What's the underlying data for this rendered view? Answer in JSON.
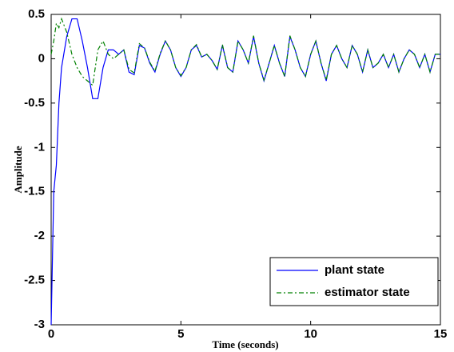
{
  "chart_data": {
    "type": "line",
    "xlabel": "Time (seconds)",
    "ylabel": "Amplitude",
    "x": [
      0,
      0.1,
      0.2,
      0.3,
      0.4,
      0.6,
      0.8,
      1.0,
      1.2,
      1.4,
      1.6,
      1.8,
      2.0,
      2.2,
      2.4,
      2.6,
      2.8,
      3.0,
      3.2,
      3.4,
      3.6,
      3.8,
      4.0,
      4.2,
      4.4,
      4.6,
      4.8,
      5.0,
      5.2,
      5.4,
      5.6,
      5.8,
      6.0,
      6.2,
      6.4,
      6.6,
      6.8,
      7.0,
      7.2,
      7.4,
      7.6,
      7.8,
      8.0,
      8.2,
      8.4,
      8.6,
      8.8,
      9.0,
      9.2,
      9.4,
      9.6,
      9.8,
      10.0,
      10.2,
      10.4,
      10.6,
      10.8,
      11.0,
      11.2,
      11.4,
      11.6,
      11.8,
      12.0,
      12.2,
      12.4,
      12.6,
      12.8,
      13.0,
      13.2,
      13.4,
      13.6,
      13.8,
      14.0,
      14.2,
      14.4,
      14.6,
      14.8,
      15.0
    ],
    "series": [
      {
        "name": "plant state",
        "color": "#0000ff",
        "dash": "none",
        "values": [
          -3,
          -1.5,
          -1.2,
          -0.5,
          -0.1,
          0.25,
          0.45,
          0.45,
          0.2,
          -0.1,
          -0.45,
          -0.45,
          -0.1,
          0.1,
          0.1,
          0.05,
          0.1,
          -0.15,
          -0.18,
          0.15,
          0.12,
          -0.05,
          -0.15,
          0.05,
          0.2,
          0.1,
          -0.1,
          -0.2,
          -0.1,
          0.1,
          0.15,
          0.02,
          0.05,
          -0.02,
          -0.12,
          0.15,
          -0.1,
          -0.15,
          0.2,
          0.1,
          -0.05,
          0.25,
          -0.05,
          -0.25,
          -0.05,
          0.15,
          -0.05,
          -0.2,
          0.25,
          0.1,
          -0.1,
          -0.2,
          0.05,
          0.2,
          -0.05,
          -0.25,
          0.05,
          0.15,
          0.0,
          -0.1,
          0.15,
          0.05,
          -0.15,
          0.1,
          -0.1,
          -0.05,
          0.05,
          -0.1,
          0.05,
          -0.15,
          0.0,
          0.1,
          0.05,
          -0.1,
          0.05,
          -0.15,
          0.05,
          0.05
        ]
      },
      {
        "name": "estimator state",
        "color": "#008000",
        "dash": "6 3 2 3",
        "values": [
          0.05,
          0.2,
          0.4,
          0.35,
          0.45,
          0.3,
          0.05,
          -0.1,
          -0.2,
          -0.25,
          -0.3,
          0.1,
          0.2,
          0.05,
          0.0,
          0.05,
          0.1,
          -0.12,
          -0.16,
          0.17,
          0.12,
          -0.04,
          -0.14,
          0.06,
          0.2,
          0.1,
          -0.1,
          -0.19,
          -0.1,
          0.1,
          0.16,
          0.02,
          0.05,
          -0.02,
          -0.12,
          0.16,
          -0.1,
          -0.15,
          0.2,
          0.1,
          -0.05,
          0.26,
          -0.05,
          -0.24,
          -0.05,
          0.15,
          -0.05,
          -0.2,
          0.26,
          0.1,
          -0.1,
          -0.2,
          0.05,
          0.2,
          -0.05,
          -0.24,
          0.05,
          0.15,
          0.0,
          -0.1,
          0.15,
          0.05,
          -0.15,
          0.1,
          -0.1,
          -0.05,
          0.05,
          -0.1,
          0.05,
          -0.15,
          0.0,
          0.1,
          0.05,
          -0.1,
          0.05,
          -0.15,
          0.05,
          0.05
        ]
      }
    ],
    "xlim": [
      0,
      15
    ],
    "xticks": [
      0,
      5,
      10,
      15
    ],
    "ylim": [
      -3,
      0.5
    ],
    "yticks": [
      -3,
      -2.5,
      -2,
      -1.5,
      -1,
      -0.5,
      0,
      0.5
    ],
    "grid": false,
    "legend": "lower right"
  }
}
